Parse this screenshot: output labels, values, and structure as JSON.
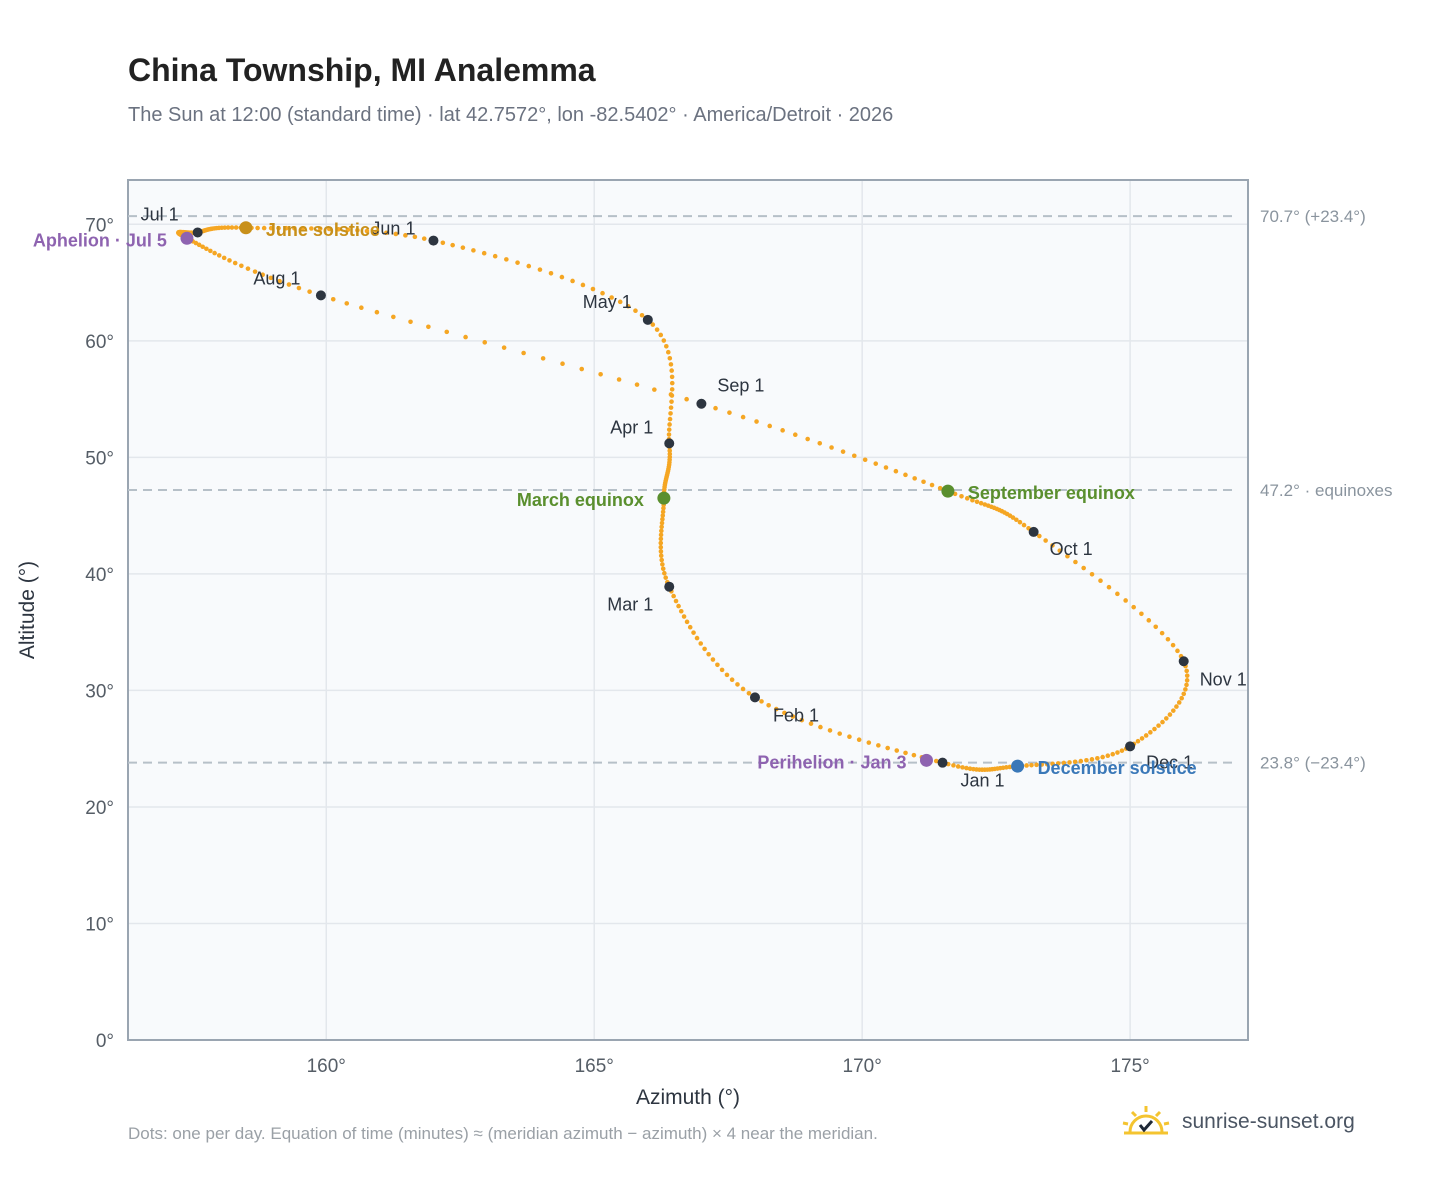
{
  "colors": {
    "path": "#f5a623",
    "marker": "#2d3540",
    "solstice_june": "#c8901a",
    "solstice_december": "#3a78b8",
    "equinox": "#5a8f2e",
    "apsis": "#8e63b0",
    "plot_bg": "#f8fafc",
    "grid": "#e3e7ec",
    "reference_line": "#b6c0c8"
  },
  "header": {
    "title": "China Township, MI Analemma",
    "subtitle": "The Sun at 12:00 (standard time) · lat 42.7572°, lon -82.5402° · America/Detroit · 2026"
  },
  "footer": {
    "note": "Dots: one per day. Equation of time (minutes) ≈ (meridian azimuth − azimuth) × 4 near the meridian.",
    "brand": "sunrise-sunset.org",
    "brand_icon": "sun-check-icon"
  },
  "chart_data": {
    "type": "scatter",
    "xlabel": "Azimuth (°)",
    "ylabel": "Altitude (°)",
    "xlim": [
      156.3,
      177.2
    ],
    "ylim": [
      0,
      73.8
    ],
    "xticks": [
      160,
      165,
      170,
      175
    ],
    "xtick_labels": [
      "160°",
      "165°",
      "170°",
      "175°"
    ],
    "yticks": [
      0,
      10,
      20,
      30,
      40,
      50,
      60,
      70
    ],
    "ytick_labels": [
      "0°",
      "10°",
      "20°",
      "30°",
      "40°",
      "50°",
      "60°",
      "70°"
    ],
    "grid": true,
    "path_points": [
      {
        "x": 171.5,
        "y": 23.8
      },
      {
        "x": 168.0,
        "y": 29.4
      },
      {
        "x": 166.4,
        "y": 38.9
      },
      {
        "x": 166.3,
        "y": 46.5
      },
      {
        "x": 166.4,
        "y": 51.2
      },
      {
        "x": 166.0,
        "y": 61.8
      },
      {
        "x": 162.0,
        "y": 68.6
      },
      {
        "x": 158.5,
        "y": 69.7
      },
      {
        "x": 157.6,
        "y": 69.3
      },
      {
        "x": 157.4,
        "y": 68.8
      },
      {
        "x": 159.9,
        "y": 63.9
      },
      {
        "x": 167.0,
        "y": 54.6
      },
      {
        "x": 171.6,
        "y": 47.1
      },
      {
        "x": 173.2,
        "y": 43.6
      },
      {
        "x": 176.0,
        "y": 32.5
      },
      {
        "x": 175.0,
        "y": 25.2
      },
      {
        "x": 172.9,
        "y": 23.5
      },
      {
        "x": 171.5,
        "y": 23.8
      }
    ],
    "reference_lines": [
      {
        "y": 70.7,
        "label": "70.7° (+23.4°)"
      },
      {
        "y": 47.2,
        "label": "47.2° · equinoxes"
      },
      {
        "y": 23.8,
        "label": "23.8° (−23.4°)"
      }
    ],
    "month_markers": [
      {
        "label": "Jan 1",
        "x": 171.5,
        "y": 23.8
      },
      {
        "label": "Feb 1",
        "x": 168.0,
        "y": 29.4
      },
      {
        "label": "Mar 1",
        "x": 166.4,
        "y": 38.9
      },
      {
        "label": "Apr 1",
        "x": 166.4,
        "y": 51.2
      },
      {
        "label": "May 1",
        "x": 166.0,
        "y": 61.8
      },
      {
        "label": "Jun 1",
        "x": 162.0,
        "y": 68.6
      },
      {
        "label": "Jul 1",
        "x": 157.6,
        "y": 69.3
      },
      {
        "label": "Aug 1",
        "x": 159.9,
        "y": 63.9
      },
      {
        "label": "Sep 1",
        "x": 167.0,
        "y": 54.6
      },
      {
        "label": "Oct 1",
        "x": 173.2,
        "y": 43.6
      },
      {
        "label": "Nov 1",
        "x": 176.0,
        "y": 32.5
      },
      {
        "label": "Dec 1",
        "x": 175.0,
        "y": 25.2
      }
    ],
    "events": [
      {
        "label": "June solstice",
        "x": 158.5,
        "y": 69.7,
        "color": "#c8901a"
      },
      {
        "label": "December solstice",
        "x": 172.9,
        "y": 23.5,
        "color": "#3a78b8"
      },
      {
        "label": "March equinox",
        "x": 166.3,
        "y": 46.5,
        "color": "#5a8f2e"
      },
      {
        "label": "September equinox",
        "x": 171.6,
        "y": 47.1,
        "color": "#5a8f2e"
      },
      {
        "label": "Aphelion · Jul 5",
        "x": 157.4,
        "y": 68.8,
        "color": "#8e63b0"
      },
      {
        "label": "Perihelion · Jan 3",
        "x": 171.2,
        "y": 24.0,
        "color": "#8e63b0"
      }
    ]
  }
}
